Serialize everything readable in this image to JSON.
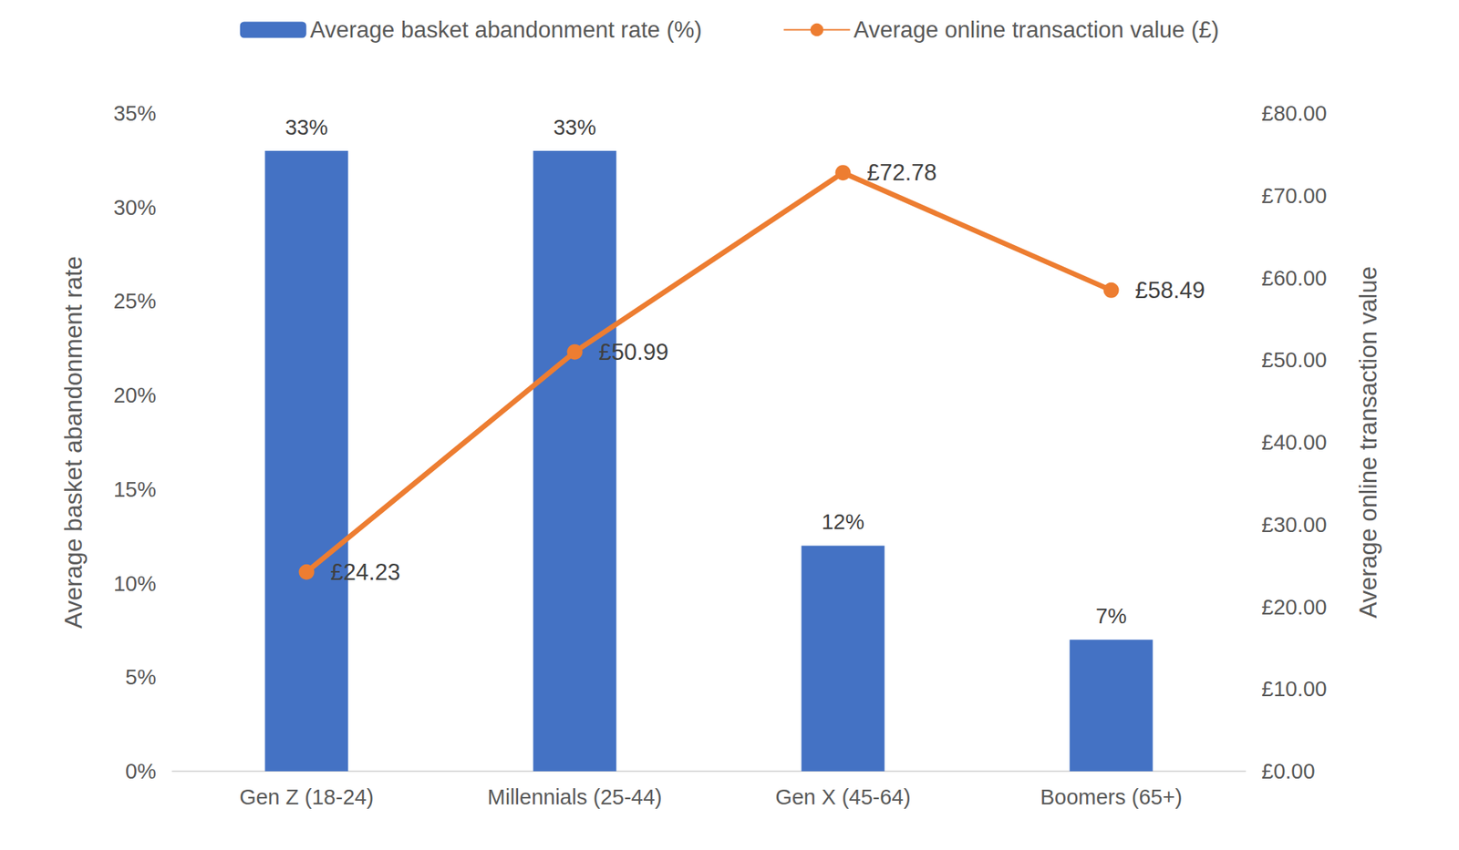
{
  "chart_data": {
    "type": "bar",
    "categories": [
      "Gen Z (18-24)",
      "Millennials (25-44)",
      "Gen X (45-64)",
      "Boomers (65+)"
    ],
    "series": [
      {
        "name": "Average basket abandonment rate (%)",
        "type": "bar",
        "color": "#4472c4",
        "values": [
          33,
          33,
          12,
          7
        ],
        "value_labels": [
          "33%",
          "33%",
          "12%",
          "7%"
        ]
      },
      {
        "name": "Average online transaction value (£)",
        "type": "line",
        "color": "#ed7d31",
        "marker": "circle",
        "line_style": "solid",
        "axis": "y2",
        "values": [
          24.23,
          50.99,
          72.78,
          58.49
        ],
        "value_labels": [
          "£24.23",
          "£50.99",
          "£72.78",
          "£58.49"
        ]
      }
    ],
    "ylabel": "Average basket abandonment rate",
    "y2label": "Average online transaction value",
    "ylim": [
      0,
      35
    ],
    "yticks": [
      {
        "value": 0,
        "label": "0%"
      },
      {
        "value": 5,
        "label": "5%"
      },
      {
        "value": 10,
        "label": "10%"
      },
      {
        "value": 15,
        "label": "15%"
      },
      {
        "value": 20,
        "label": "20%"
      },
      {
        "value": 25,
        "label": "25%"
      },
      {
        "value": 30,
        "label": "30%"
      },
      {
        "value": 35,
        "label": "35%"
      }
    ],
    "y2lim": [
      0,
      80
    ],
    "y2ticks": [
      {
        "value": 0,
        "label": "£0.00"
      },
      {
        "value": 10,
        "label": "£10.00"
      },
      {
        "value": 20,
        "label": "£20.00"
      },
      {
        "value": 30,
        "label": "£30.00"
      },
      {
        "value": 40,
        "label": "£40.00"
      },
      {
        "value": 50,
        "label": "£50.00"
      },
      {
        "value": 60,
        "label": "£60.00"
      },
      {
        "value": 70,
        "label": "£70.00"
      },
      {
        "value": 80,
        "label": "£80.00"
      }
    ],
    "data_labels": true,
    "legend": "top",
    "grid": false
  }
}
